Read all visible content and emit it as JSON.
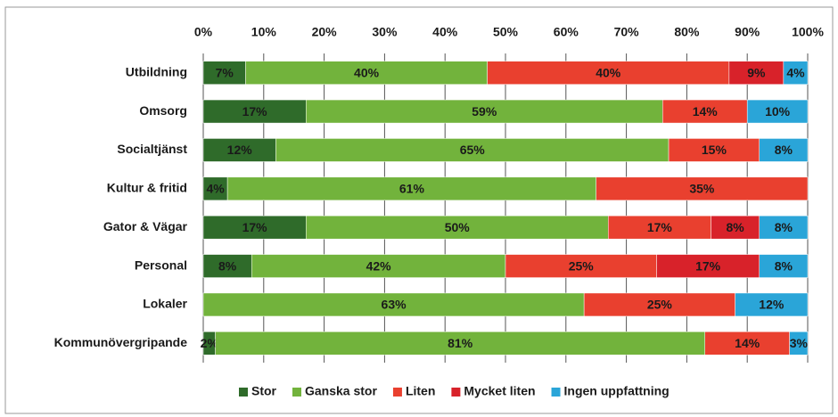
{
  "chart_data": {
    "type": "stacked-bar-horizontal",
    "categories": [
      "Utbildning",
      "Omsorg",
      "Socialtjänst",
      "Kultur & fritid",
      "Gator & Vägar",
      "Personal",
      "Lokaler",
      "Kommunövergripande"
    ],
    "series": [
      {
        "name": "Stor",
        "color": "#2f6b2a",
        "values": [
          7,
          17,
          12,
          4,
          17,
          8,
          null,
          2
        ],
        "value_labels": [
          "7%",
          "17%",
          "12%",
          "4%",
          "17%",
          "8%",
          null,
          "2%"
        ]
      },
      {
        "name": "Ganska stor",
        "color": "#72b33c",
        "values": [
          40,
          59,
          65,
          61,
          50,
          42,
          63,
          81
        ],
        "value_labels": [
          "40%",
          "59%",
          "65%",
          "61%",
          "50%",
          "42%",
          "63%",
          "81%"
        ]
      },
      {
        "name": "Liten",
        "color": "#e9402f",
        "values": [
          40,
          14,
          15,
          35,
          17,
          25,
          25,
          14
        ],
        "value_labels": [
          "40%",
          "14%",
          "15%",
          "35%",
          "17%",
          "25%",
          "25%",
          "14%"
        ]
      },
      {
        "name": "Mycket liten",
        "color": "#d8222a",
        "values": [
          9,
          null,
          null,
          null,
          8,
          17,
          null,
          null
        ],
        "value_labels": [
          "9%",
          null,
          null,
          null,
          "8%",
          "17%",
          null,
          null
        ]
      },
      {
        "name": "Ingen uppfattning",
        "color": "#2aa5d8",
        "values": [
          4,
          10,
          8,
          null,
          8,
          8,
          12,
          3
        ],
        "value_labels": [
          "4%",
          "10%",
          "8%",
          null,
          "8%",
          "8%",
          "12%",
          "3%"
        ]
      }
    ],
    "xlim": [
      0,
      100
    ],
    "xticks": [
      {
        "value": 0,
        "label": "0%"
      },
      {
        "value": 10,
        "label": "10%"
      },
      {
        "value": 20,
        "label": "20%"
      },
      {
        "value": 30,
        "label": "30%"
      },
      {
        "value": 40,
        "label": "40%"
      },
      {
        "value": 50,
        "label": "50%"
      },
      {
        "value": 60,
        "label": "60%"
      },
      {
        "value": 70,
        "label": "70%"
      },
      {
        "value": 80,
        "label": "80%"
      },
      {
        "value": 90,
        "label": "90%"
      },
      {
        "value": 100,
        "label": "100%"
      }
    ],
    "grid": true,
    "legend": "bottom"
  }
}
